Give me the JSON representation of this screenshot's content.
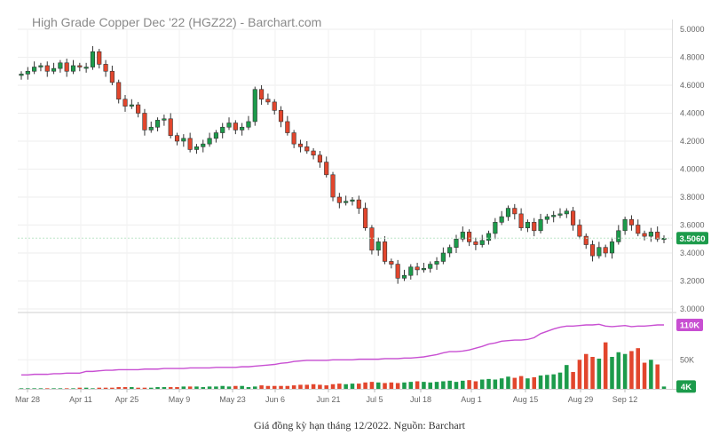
{
  "chart_data": [
    {
      "type": "candlestick",
      "title": "High Grade Copper Dec '22 (HGZ22) - Barchart.com",
      "x_labels": [
        "Mar 28",
        "Apr 11",
        "Apr 25",
        "May 9",
        "May 23",
        "Jun 6",
        "Jun 21",
        "Jul 5",
        "Jul 18",
        "Aug 1",
        "Aug 15",
        "Aug 29",
        "Sep 12"
      ],
      "y_ticks": [
        "5.0000",
        "4.8000",
        "4.6000",
        "4.4000",
        "4.2000",
        "4.0000",
        "3.8000",
        "3.6000",
        "3.4000",
        "3.2000",
        "3.0000"
      ],
      "ylim": [
        3.0,
        5.0
      ],
      "last_price": "3.5060",
      "grid": true,
      "up_color": "#1c9b4b",
      "down_color": "#e2462d",
      "closes": [
        4.68,
        4.7,
        4.73,
        4.74,
        4.7,
        4.72,
        4.76,
        4.7,
        4.74,
        4.73,
        4.73,
        4.84,
        4.75,
        4.7,
        4.62,
        4.5,
        4.45,
        4.46,
        4.4,
        4.28,
        4.3,
        4.35,
        4.36,
        4.24,
        4.2,
        4.22,
        4.14,
        4.16,
        4.18,
        4.22,
        4.26,
        4.3,
        4.33,
        4.28,
        4.3,
        4.34,
        4.57,
        4.5,
        4.48,
        4.42,
        4.34,
        4.26,
        4.18,
        4.16,
        4.13,
        4.1,
        4.05,
        3.96,
        3.8,
        3.76,
        3.77,
        3.78,
        3.72,
        3.58,
        3.42,
        3.48,
        3.34,
        3.32,
        3.22,
        3.24,
        3.3,
        3.28,
        3.29,
        3.32,
        3.34,
        3.4,
        3.44,
        3.5,
        3.55,
        3.48,
        3.46,
        3.49,
        3.54,
        3.62,
        3.66,
        3.72,
        3.68,
        3.58,
        3.62,
        3.56,
        3.64,
        3.66,
        3.67,
        3.68,
        3.7,
        3.6,
        3.52,
        3.46,
        3.38,
        3.44,
        3.4,
        3.48,
        3.56,
        3.64,
        3.6,
        3.54,
        3.52,
        3.55,
        3.5,
        3.506
      ],
      "volume": {
        "y_ticks": [
          "50K"
        ],
        "open_interest_label": "110K",
        "volume_label": "4K",
        "oi_color": "#c84fd2",
        "values_k": [
          1,
          1,
          1,
          1,
          1,
          1,
          1,
          1,
          1,
          2,
          2,
          1,
          2,
          2,
          2,
          3,
          3,
          3,
          2,
          2,
          2,
          3,
          3,
          3,
          3,
          4,
          4,
          4,
          3,
          4,
          4,
          5,
          4,
          5,
          5,
          3,
          4,
          6,
          5,
          5,
          5,
          5,
          6,
          7,
          7,
          8,
          7,
          6,
          8,
          9,
          8,
          9,
          9,
          11,
          12,
          11,
          10,
          11,
          10,
          11,
          12,
          13,
          12,
          11,
          12,
          13,
          14,
          12,
          14,
          15,
          13,
          16,
          17,
          16,
          18,
          21,
          19,
          22,
          18,
          20,
          23,
          24,
          25,
          28,
          41,
          29,
          50,
          60,
          55,
          52,
          80,
          55,
          63,
          60,
          65,
          70,
          45,
          50,
          42,
          4
        ],
        "oi_k": [
          24,
          24,
          25,
          25,
          25,
          26,
          26,
          27,
          27,
          27,
          30,
          30,
          31,
          32,
          32,
          33,
          33,
          33,
          33,
          34,
          34,
          34,
          35,
          35,
          35,
          35,
          36,
          36,
          36,
          36,
          37,
          37,
          37,
          37,
          38,
          38,
          39,
          40,
          41,
          42,
          44,
          45,
          47,
          48,
          49,
          49,
          49,
          49,
          50,
          50,
          50,
          50,
          51,
          51,
          51,
          51,
          52,
          52,
          52,
          53,
          53,
          54,
          55,
          57,
          59,
          62,
          64,
          64,
          65,
          67,
          70,
          73,
          77,
          79,
          82,
          83,
          84,
          84,
          85,
          88,
          95,
          99,
          103,
          106,
          108,
          108,
          109,
          110,
          110,
          111,
          108,
          107,
          108,
          109,
          107,
          108,
          108,
          109,
          110,
          110
        ]
      }
    }
  ],
  "caption": "Giá đồng kỳ hạn tháng 12/2022. Nguồn: Barchart"
}
